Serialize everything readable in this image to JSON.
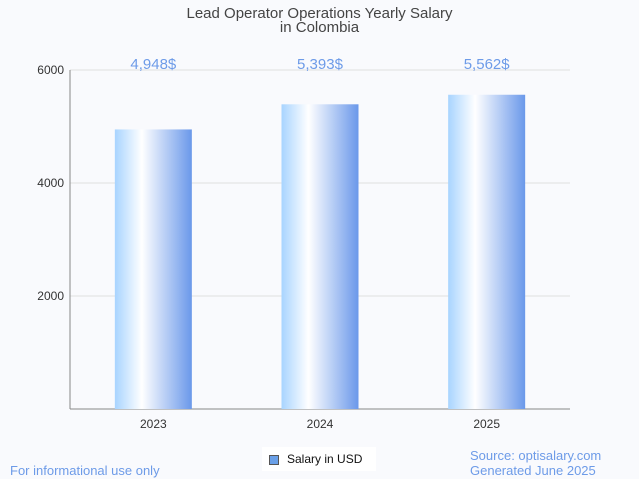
{
  "chart_data": {
    "type": "bar",
    "title": "Lead Operator Operations Yearly Salary",
    "subtitle": "in Colombia",
    "categories": [
      "2023",
      "2024",
      "2025"
    ],
    "values": [
      4948,
      5393,
      5562
    ],
    "data_labels": [
      "4,948$",
      "5,393$",
      "5,562$"
    ],
    "yticks": [
      2000,
      4000,
      6000
    ],
    "ylim": [
      0,
      6000
    ],
    "xlabel": "",
    "ylabel": "",
    "grid": true,
    "legend": {
      "label": "Salary in USD",
      "placement": "bottom"
    },
    "colors": {
      "bar_start": "#a8d4ff",
      "bar_mid": "#ffffff",
      "bar_end": "#6a98ea",
      "label": "#6d9be8"
    }
  },
  "footer": {
    "left": "For informational use only",
    "source": "Source: optisalary.com",
    "generated": "Generated June 2025"
  }
}
